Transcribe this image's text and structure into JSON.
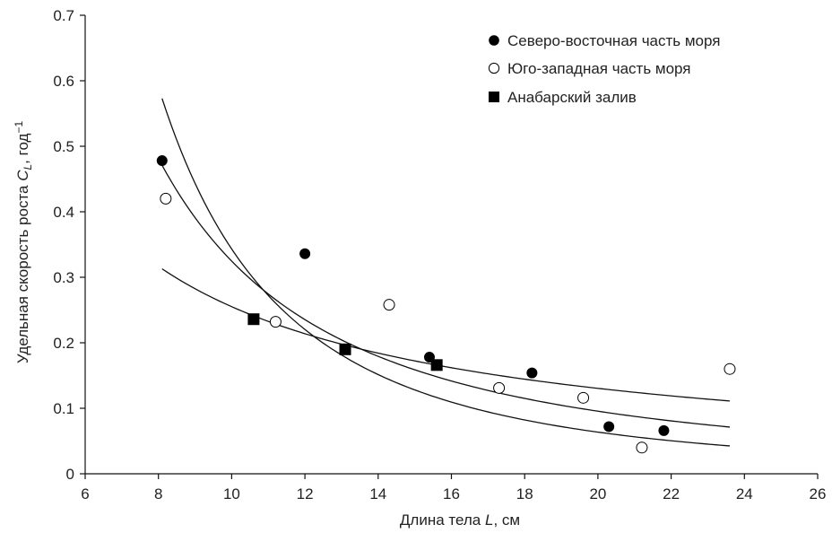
{
  "chart_data": {
    "type": "scatter",
    "xlabel": "Длина тела",
    "xlabel_var": "L",
    "xlabel_unit": ", см",
    "ylabel": "Удельная скорость роста",
    "ylabel_var": "C",
    "ylabel_sub": "L",
    "ylabel_unit": ", год",
    "ylabel_sup": "−1",
    "xlim": [
      6,
      26
    ],
    "ylim": [
      0,
      0.7
    ],
    "xticks": [
      6,
      8,
      10,
      12,
      14,
      16,
      18,
      20,
      22,
      24,
      26
    ],
    "yticks": [
      0,
      0.1,
      0.2,
      0.3,
      0.4,
      0.5,
      0.6,
      0.7
    ],
    "xtick_labels": [
      "6",
      "8",
      "10",
      "12",
      "14",
      "16",
      "18",
      "20",
      "22",
      "24",
      "26"
    ],
    "ytick_labels": [
      "0",
      "0.1",
      "0.2",
      "0.3",
      "0.4",
      "0.5",
      "0.6",
      "0.7"
    ],
    "legend_position": "top-right",
    "grid": false,
    "series": [
      {
        "name": "Северо-восточная часть моря",
        "marker": "filled-circle",
        "points": [
          [
            8.1,
            0.478
          ],
          [
            12.0,
            0.336
          ],
          [
            15.4,
            0.178
          ],
          [
            18.2,
            0.154
          ],
          [
            20.3,
            0.072
          ],
          [
            21.8,
            0.066
          ]
        ]
      },
      {
        "name": "Юго-западная часть моря",
        "marker": "open-circle",
        "points": [
          [
            8.2,
            0.42
          ],
          [
            11.2,
            0.232
          ],
          [
            14.3,
            0.258
          ],
          [
            17.3,
            0.131
          ],
          [
            19.6,
            0.116
          ],
          [
            21.2,
            0.04
          ],
          [
            23.6,
            0.16
          ]
        ]
      },
      {
        "name": "Анабарский залив",
        "marker": "filled-square",
        "points": [
          [
            10.6,
            0.236
          ],
          [
            13.1,
            0.19
          ],
          [
            15.6,
            0.166
          ]
        ]
      }
    ],
    "fit_curves": [
      {
        "form": "power",
        "a": 92.8,
        "b": -2.432,
        "x_range": [
          8.1,
          23.6
        ]
      },
      {
        "form": "power",
        "a": 18.9,
        "b": -1.765,
        "x_range": [
          8.1,
          23.6
        ]
      },
      {
        "form": "power",
        "a": 2.37,
        "b": -0.968,
        "x_range": [
          8.1,
          23.6
        ]
      }
    ]
  }
}
